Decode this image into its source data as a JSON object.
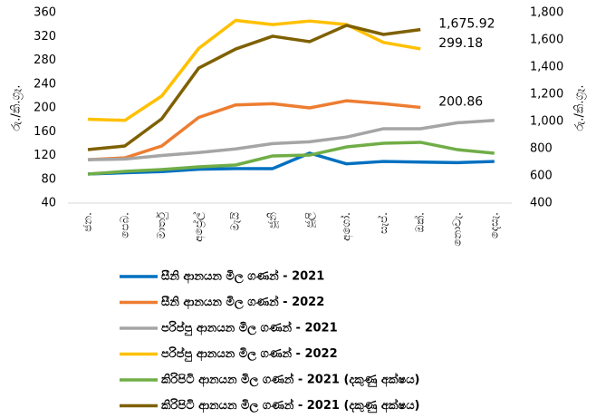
{
  "chart_data": {
    "type": "line",
    "categories": [
      "ජන.",
      "පෙබ.",
      "මාර්තු",
      "අප්‍රේල්",
      "මැයි",
      "ජූනි",
      "ජූලි",
      "අගෝ.",
      "සැප්.",
      "ඔක්.",
      "නොවැ.",
      "දෙසැ."
    ],
    "ylabel": "රු./කි.ග්‍රෑ.",
    "y2label": "රු./කි.ග්‍රෑ.",
    "ylim": [
      40,
      360
    ],
    "yticks": [
      40,
      80,
      120,
      160,
      200,
      240,
      280,
      320,
      360
    ],
    "y2lim": [
      400,
      1800
    ],
    "y2ticks": [
      400,
      600,
      800,
      {
        "value": 1000,
        "label": "1,000"
      },
      {
        "value": 1200,
        "label": "1,200"
      },
      {
        "value": 1400,
        "label": "1,400"
      },
      {
        "value": 1600,
        "label": "1,600"
      },
      {
        "value": 1800,
        "label": "1,800"
      }
    ],
    "legend": "bottom",
    "series": [
      {
        "name": "සීනි  ආනයන මිල ගණන් - 2021",
        "color": "#0070c0",
        "values": [
          89,
          91,
          93,
          97,
          98,
          98,
          124,
          106,
          110,
          109,
          108,
          110
        ]
      },
      {
        "name": "සීනි  ආනයන මිල ගණන් - 2022",
        "color": "#ed7d31",
        "values": [
          113,
          116,
          136,
          184,
          205,
          207,
          200,
          212,
          207,
          200.86,
          null,
          null
        ],
        "value_labels": [
          null,
          null,
          null,
          null,
          null,
          null,
          null,
          null,
          null,
          "200.86",
          null,
          null
        ]
      },
      {
        "name": "පරිප්පු ආනයන මිල ගණන් - 2021",
        "color": "#a5a5a5",
        "values": [
          113,
          114,
          120,
          125,
          131,
          140,
          143,
          151,
          165,
          165,
          175,
          179
        ]
      },
      {
        "name": "පරිප්පු ආනයන මිල ගණන් - 2022",
        "color": "#ffc000",
        "values": [
          181,
          179,
          220,
          300,
          347,
          340,
          346,
          340,
          310,
          299.18,
          null,
          null
        ],
        "value_labels": [
          null,
          null,
          null,
          null,
          null,
          null,
          null,
          null,
          null,
          "299.18",
          null,
          null
        ]
      },
      {
        "name": "කිරිපිටි ආනයන මිල ගණන් - 2021 (දකුණු අක්ෂය)",
        "color": "#70ad47",
        "axis": "y2",
        "values": [
          613,
          633,
          647,
          667,
          680,
          747,
          753,
          813,
          840,
          847,
          793,
          767
        ]
      },
      {
        "name": "කිරිපිටි ආනයන මිල ගණන් - 2021 (දකුණු අක්ෂය)",
        "color": "#7f6000",
        "axis": "y2",
        "values": [
          793,
          820,
          1020,
          1393,
          1533,
          1627,
          1587,
          1707,
          1640,
          1675.92,
          null,
          null
        ],
        "value_labels": [
          null,
          null,
          null,
          null,
          null,
          null,
          null,
          null,
          null,
          "1,675.92",
          null,
          null
        ]
      }
    ]
  }
}
